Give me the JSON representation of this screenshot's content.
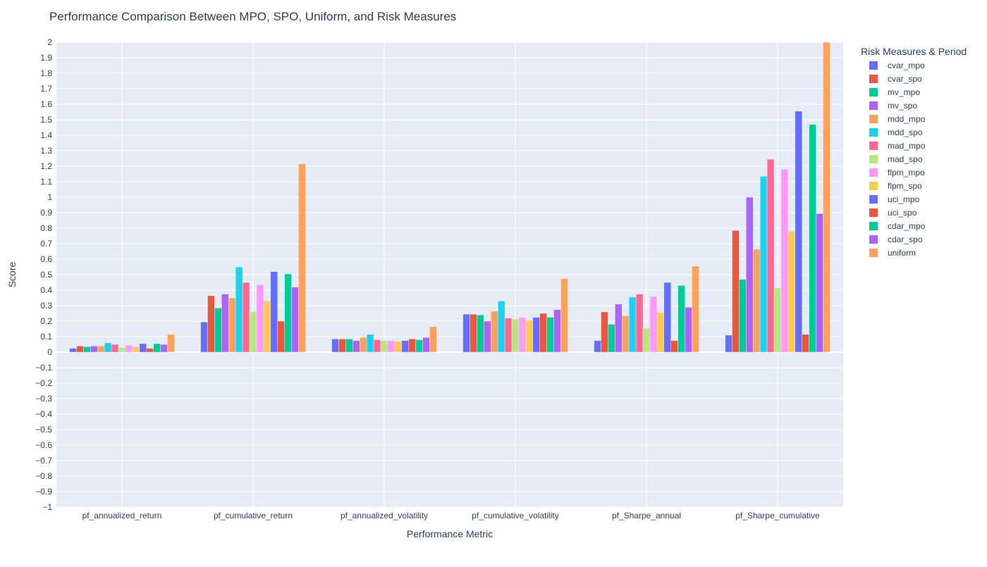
{
  "chart_data": {
    "type": "bar",
    "title": "Performance Comparison Between MPO, SPO, Uniform, and Risk Measures",
    "xlabel": "Performance Metric",
    "ylabel": "Score",
    "ylim": [
      -1,
      2
    ],
    "ytick_step": 0.1,
    "grid": true,
    "legend_position": "top-right",
    "legend_title": "Risk Measures & Period",
    "plot_bgcolor": "#e5ecf6",
    "grid_color": "#ffffff",
    "text_color": "#2a3f5f",
    "categories": [
      "pf_annualized_return",
      "pf_cumulative_return",
      "pf_annualized_volatility",
      "pf_cumulative_volatility",
      "pf_Sharpe_annual",
      "pf_Sharpe_cumulative"
    ],
    "series": [
      {
        "name": "cvar_mpo",
        "color": "#636efa",
        "values": [
          0.025,
          0.195,
          0.085,
          0.245,
          0.075,
          0.11
        ]
      },
      {
        "name": "cvar_spo",
        "color": "#ef553b",
        "values": [
          0.04,
          0.365,
          0.085,
          0.245,
          0.26,
          0.785
        ]
      },
      {
        "name": "mv_mpo",
        "color": "#00cc96",
        "values": [
          0.035,
          0.285,
          0.085,
          0.24,
          0.18,
          0.47
        ]
      },
      {
        "name": "mv_spo",
        "color": "#ab63fa",
        "values": [
          0.04,
          0.375,
          0.075,
          0.2,
          0.31,
          1.0
        ]
      },
      {
        "name": "mdd_mpo",
        "color": "#ffa15a",
        "values": [
          0.04,
          0.35,
          0.095,
          0.265,
          0.235,
          0.665
        ]
      },
      {
        "name": "mdd_spo",
        "color": "#19d3f3",
        "values": [
          0.06,
          0.55,
          0.115,
          0.33,
          0.355,
          1.135
        ]
      },
      {
        "name": "mad_mpo",
        "color": "#ff6692",
        "values": [
          0.05,
          0.45,
          0.08,
          0.22,
          0.375,
          1.245
        ]
      },
      {
        "name": "mad_spo",
        "color": "#b6e880",
        "values": [
          0.03,
          0.26,
          0.075,
          0.215,
          0.155,
          0.415
        ]
      },
      {
        "name": "flpm_mpo",
        "color": "#ff97ff",
        "values": [
          0.045,
          0.435,
          0.075,
          0.225,
          0.36,
          1.18
        ]
      },
      {
        "name": "flpm_spo",
        "color": "#fecb52",
        "values": [
          0.035,
          0.33,
          0.07,
          0.205,
          0.255,
          0.78
        ]
      },
      {
        "name": "uci_mpo",
        "color": "#636efa",
        "values": [
          0.055,
          0.52,
          0.075,
          0.225,
          0.45,
          1.555
        ]
      },
      {
        "name": "uci_spo",
        "color": "#ef553b",
        "values": [
          0.025,
          0.2,
          0.085,
          0.25,
          0.075,
          0.115
        ]
      },
      {
        "name": "cdar_mpo",
        "color": "#00cc96",
        "values": [
          0.055,
          0.505,
          0.08,
          0.225,
          0.43,
          1.47
        ]
      },
      {
        "name": "cdar_spo",
        "color": "#ab63fa",
        "values": [
          0.05,
          0.42,
          0.095,
          0.275,
          0.29,
          0.895
        ]
      },
      {
        "name": "uniform",
        "color": "#ffa15a",
        "values": [
          0.115,
          1.215,
          0.165,
          0.475,
          0.555,
          2.0
        ]
      }
    ]
  }
}
